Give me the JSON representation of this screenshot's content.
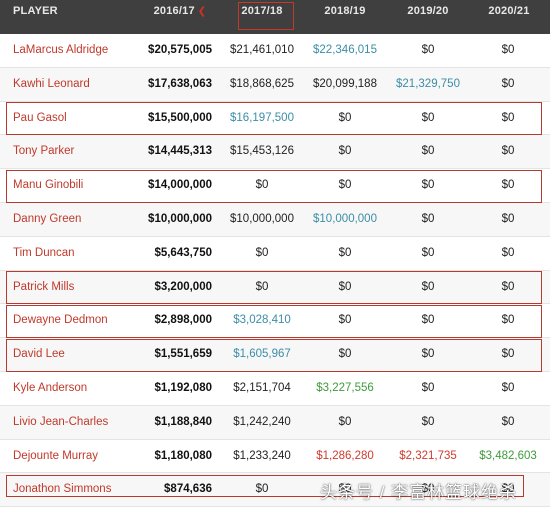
{
  "header": {
    "player": "PLAYER",
    "y2016": "2016/17",
    "y2017": "2017/18",
    "y2018": "2018/19",
    "y2019": "2019/20",
    "y2020": "2020/21",
    "sort_icon": "chevron-down-icon"
  },
  "rows": [
    {
      "name": "LaMarcus Aldridge",
      "y2016": "$20,575,005",
      "y2017": "$21,461,010",
      "y2018": "$22,346,015",
      "y2019": "$0",
      "y2020": "$0"
    },
    {
      "name": "Kawhi Leonard",
      "y2016": "$17,638,063",
      "y2017": "$18,868,625",
      "y2018": "$20,099,188",
      "y2019": "$21,329,750",
      "y2020": "$0"
    },
    {
      "name": "Pau Gasol",
      "y2016": "$15,500,000",
      "y2017": "$16,197,500",
      "y2018": "$0",
      "y2019": "$0",
      "y2020": "$0"
    },
    {
      "name": "Tony Parker",
      "y2016": "$14,445,313",
      "y2017": "$15,453,126",
      "y2018": "$0",
      "y2019": "$0",
      "y2020": "$0"
    },
    {
      "name": "Manu Ginobili",
      "y2016": "$14,000,000",
      "y2017": "$0",
      "y2018": "$0",
      "y2019": "$0",
      "y2020": "$0"
    },
    {
      "name": "Danny Green",
      "y2016": "$10,000,000",
      "y2017": "$10,000,000",
      "y2018": "$10,000,000",
      "y2019": "$0",
      "y2020": "$0"
    },
    {
      "name": "Tim Duncan",
      "y2016": "$5,643,750",
      "y2017": "$0",
      "y2018": "$0",
      "y2019": "$0",
      "y2020": "$0"
    },
    {
      "name": "Patrick Mills",
      "y2016": "$3,200,000",
      "y2017": "$0",
      "y2018": "$0",
      "y2019": "$0",
      "y2020": "$0"
    },
    {
      "name": "Dewayne Dedmon",
      "y2016": "$2,898,000",
      "y2017": "$3,028,410",
      "y2018": "$0",
      "y2019": "$0",
      "y2020": "$0"
    },
    {
      "name": "David Lee",
      "y2016": "$1,551,659",
      "y2017": "$1,605,967",
      "y2018": "$0",
      "y2019": "$0",
      "y2020": "$0"
    },
    {
      "name": "Kyle Anderson",
      "y2016": "$1,192,080",
      "y2017": "$2,151,704",
      "y2018": "$3,227,556",
      "y2019": "$0",
      "y2020": "$0"
    },
    {
      "name": "Livio Jean-Charles",
      "y2016": "$1,188,840",
      "y2017": "$1,242,240",
      "y2018": "$0",
      "y2019": "$0",
      "y2020": "$0"
    },
    {
      "name": "Dejounte Murray",
      "y2016": "$1,180,080",
      "y2017": "$1,233,240",
      "y2018": "$1,286,280",
      "y2019": "$2,321,735",
      "y2020": "$3,482,603"
    },
    {
      "name": "Jonathon Simmons",
      "y2016": "$874,636",
      "y2017": "$0",
      "y2018": "$0",
      "y2019": "$0",
      "y2020": "$0"
    }
  ],
  "colors": {
    "header_bg": "#3f3f3f",
    "player_link": "#c0392b",
    "option_teal": "#3b8ea5",
    "option_green": "#3e9b3a",
    "option_red": "#cf3b2d",
    "highlight_box": "#b73a2e"
  },
  "watermark": "头条号 / 李富林篮球绝杀"
}
